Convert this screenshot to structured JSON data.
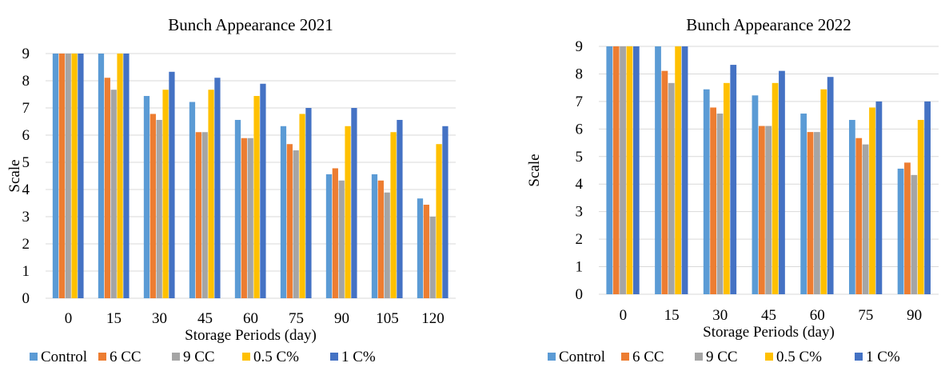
{
  "chart_data": [
    {
      "type": "bar",
      "title": "Bunch Appearance 2021",
      "xlabel": "Storage Periods (day)",
      "ylabel": "Scale",
      "ylim": [
        0,
        9
      ],
      "yticks": [
        0,
        1,
        2,
        3,
        4,
        5,
        6,
        7,
        8,
        9
      ],
      "grid": true,
      "legend_position": "bottom",
      "categories": [
        "0",
        "15",
        "30",
        "45",
        "60",
        "75",
        "90",
        "105",
        "120"
      ],
      "series": [
        {
          "name": "Control",
          "color": "#5b9bd5",
          "values": [
            9,
            9,
            7.44,
            7.22,
            6.56,
            6.33,
            4.56,
            4.56,
            3.67
          ]
        },
        {
          "name": "6 CC",
          "color": "#ed7d31",
          "values": [
            9,
            8.11,
            6.78,
            6.11,
            5.89,
            5.67,
            4.78,
            4.33,
            3.44
          ]
        },
        {
          "name": "9 CC",
          "color": "#a5a5a5",
          "values": [
            9,
            7.67,
            6.56,
            6.11,
            5.89,
            5.44,
            4.33,
            3.89,
            3.0
          ]
        },
        {
          "name": "0.5 C%",
          "color": "#ffc000",
          "values": [
            9,
            9,
            7.67,
            7.67,
            7.44,
            6.78,
            6.33,
            6.11,
            5.67
          ]
        },
        {
          "name": "1 C%",
          "color": "#4472c4",
          "values": [
            9,
            9,
            8.33,
            8.11,
            7.89,
            7.0,
            7.0,
            6.56,
            6.33
          ]
        }
      ]
    },
    {
      "type": "bar",
      "title": "Bunch Appearance 2022",
      "xlabel": "Storage Periods (day)",
      "ylabel": "Scale",
      "ylim": [
        0,
        9
      ],
      "yticks": [
        0,
        1,
        2,
        3,
        4,
        5,
        6,
        7,
        8,
        9
      ],
      "grid": true,
      "legend_position": "bottom",
      "categories": [
        "0",
        "15",
        "30",
        "45",
        "60",
        "75",
        "90"
      ],
      "series": [
        {
          "name": "Control",
          "color": "#5b9bd5",
          "values": [
            9,
            9,
            7.44,
            7.22,
            6.56,
            6.33,
            4.56
          ]
        },
        {
          "name": "6 CC",
          "color": "#ed7d31",
          "values": [
            9,
            8.11,
            6.78,
            6.11,
            5.89,
            5.67,
            4.78
          ]
        },
        {
          "name": "9 CC",
          "color": "#a5a5a5",
          "values": [
            9,
            7.67,
            6.56,
            6.11,
            5.89,
            5.44,
            4.33
          ]
        },
        {
          "name": "0.5 C%",
          "color": "#ffc000",
          "values": [
            9,
            9,
            7.67,
            7.67,
            7.44,
            6.78,
            6.33
          ]
        },
        {
          "name": "1 C%",
          "color": "#4472c4",
          "values": [
            9,
            9,
            8.33,
            8.11,
            7.89,
            7.0,
            7.0
          ]
        }
      ]
    }
  ]
}
